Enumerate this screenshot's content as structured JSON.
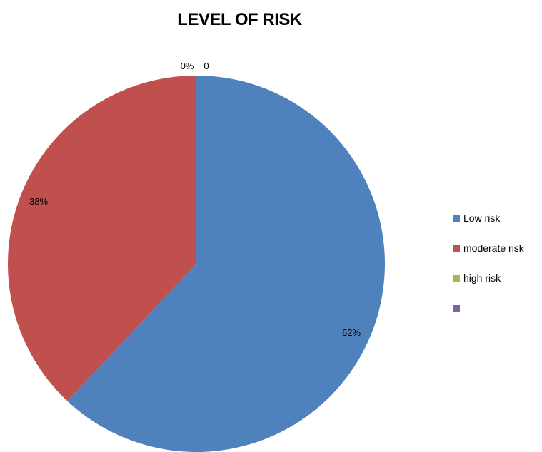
{
  "chart_data": {
    "type": "pie",
    "title": "LEVEL OF RISK",
    "start_angle_deg": 0,
    "direction": "clockwise",
    "slices": [
      {
        "label": "Low risk",
        "value": 62,
        "data_label": "62%",
        "color": "#4F81BD"
      },
      {
        "label": "moderate risk",
        "value": 38,
        "data_label": "38%",
        "color": "#C0504D"
      },
      {
        "label": "high risk",
        "value": 0,
        "data_label": "0%",
        "color": "#9BBB59"
      },
      {
        "label": "",
        "value": 0,
        "data_label": "0",
        "color": "#8064A2"
      }
    ],
    "legend_position": "right"
  }
}
